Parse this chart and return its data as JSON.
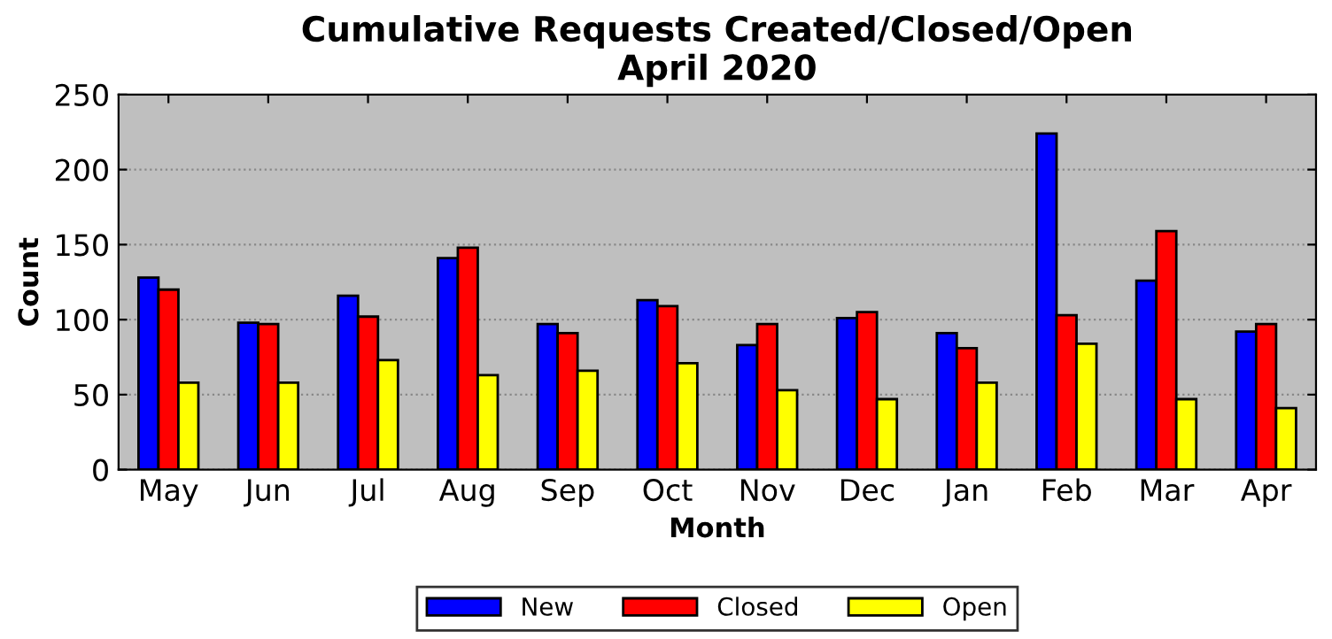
{
  "chart_data": {
    "type": "bar",
    "title": "Cumulative Requests Created/Closed/Open\nApril 2020",
    "xlabel": "Month",
    "ylabel": "Count",
    "categories": [
      "May",
      "Jun",
      "Jul",
      "Aug",
      "Sep",
      "Oct",
      "Nov",
      "Dec",
      "Jan",
      "Feb",
      "Mar",
      "Apr"
    ],
    "series": [
      {
        "name": "New",
        "color": "#0000ff",
        "values": [
          128,
          98,
          116,
          141,
          97,
          113,
          83,
          101,
          91,
          224,
          126,
          92
        ]
      },
      {
        "name": "Closed",
        "color": "#ff0000",
        "values": [
          120,
          97,
          102,
          148,
          91,
          109,
          97,
          105,
          81,
          103,
          159,
          97
        ]
      },
      {
        "name": "Open",
        "color": "#ffff00",
        "values": [
          58,
          58,
          73,
          63,
          66,
          71,
          53,
          47,
          58,
          84,
          47,
          41
        ]
      }
    ],
    "ylim": [
      0,
      250
    ],
    "yticks": [
      0,
      50,
      100,
      150,
      200,
      250
    ],
    "grid": "y",
    "legend": "bottom"
  }
}
